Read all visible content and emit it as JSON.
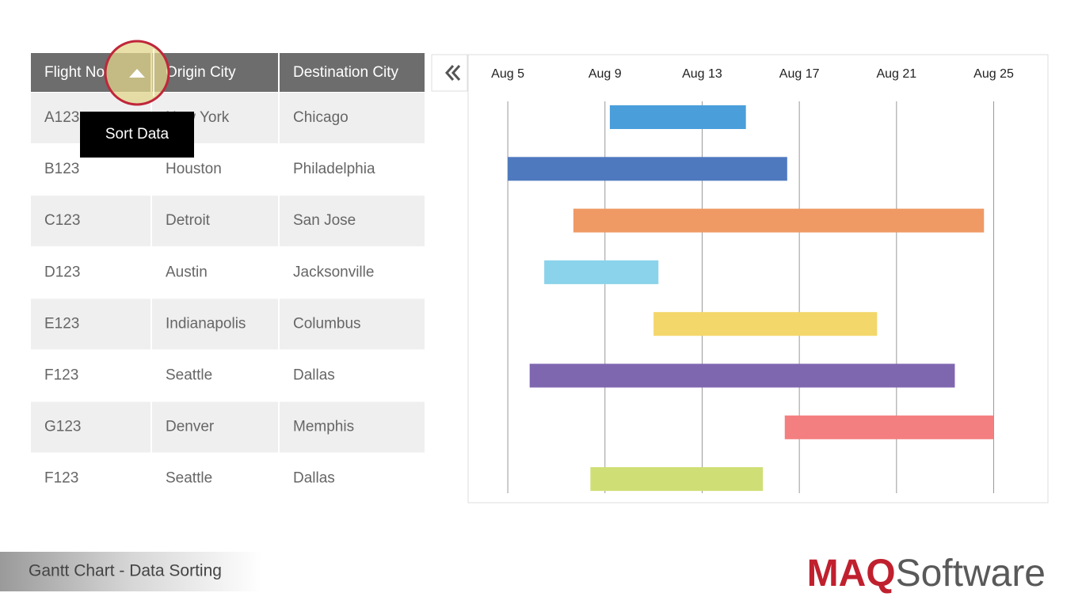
{
  "table": {
    "columns": [
      "Flight No",
      "Origin City",
      "Destination City"
    ],
    "rows": [
      [
        "A123",
        "New York",
        "Chicago"
      ],
      [
        "B123",
        "Houston",
        "Philadelphia"
      ],
      [
        "C123",
        "Detroit",
        "San Jose"
      ],
      [
        "D123",
        "Austin",
        "Jacksonville"
      ],
      [
        "E123",
        "Indianapolis",
        "Columbus"
      ],
      [
        "F123",
        "Seattle",
        "Dallas"
      ],
      [
        "G123",
        "Denver",
        "Memphis"
      ],
      [
        "F123",
        "Seattle",
        "Dallas"
      ]
    ]
  },
  "tooltip": "Sort Data",
  "chart_data": {
    "type": "gantt",
    "xlim": [
      3.4,
      27.2
    ],
    "xticks": [
      {
        "value": 5,
        "label": "Aug 5"
      },
      {
        "value": 9,
        "label": "Aug 9"
      },
      {
        "value": 13,
        "label": "Aug 13"
      },
      {
        "value": 17,
        "label": "Aug 17"
      },
      {
        "value": 21,
        "label": "Aug 21"
      },
      {
        "value": 25,
        "label": "Aug 25"
      }
    ],
    "grid": true,
    "starts": [
      9.2,
      5,
      7.7,
      6.5,
      11,
      5.9,
      16.4,
      8.4
    ],
    "ends": [
      14.8,
      16.5,
      24.6,
      11.2,
      20.2,
      23.4,
      25,
      15.5
    ],
    "colors": [
      "#4a9fdb",
      "#4f79bf",
      "#ef9964",
      "#8ad3ea",
      "#f3d76a",
      "#7f67b0",
      "#f47f80",
      "#d0df75"
    ]
  },
  "footer": {
    "caption": "Gantt Chart - Data Sorting",
    "logo_brand": "MAQ",
    "logo_word": "Software"
  }
}
